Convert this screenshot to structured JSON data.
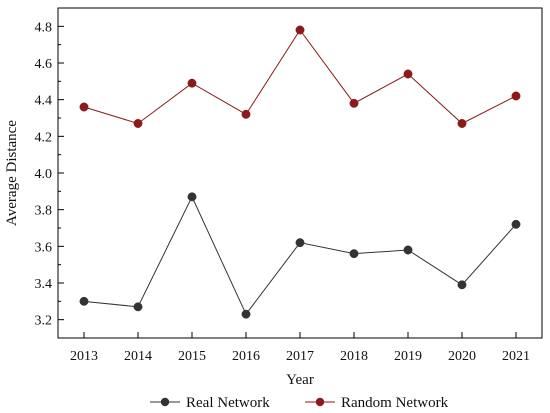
{
  "chart_data": {
    "type": "line",
    "title": "",
    "xlabel": "Year",
    "ylabel": "Average Distance",
    "categories": [
      "2013",
      "2014",
      "2015",
      "2016",
      "2017",
      "2018",
      "2019",
      "2020",
      "2021"
    ],
    "ylim": [
      3.1,
      4.9
    ],
    "yticks": [
      "3.2",
      "3.4",
      "3.6",
      "3.8",
      "4.0",
      "4.2",
      "4.4",
      "4.6",
      "4.8"
    ],
    "grid": false,
    "legend_position": "bottom",
    "series": [
      {
        "name": "Real Network",
        "values": [
          3.3,
          3.27,
          3.87,
          3.23,
          3.62,
          3.56,
          3.58,
          3.39,
          3.72
        ],
        "color": "#333333",
        "marker": "circle"
      },
      {
        "name": "Random Network",
        "values": [
          4.36,
          4.27,
          4.49,
          4.32,
          4.78,
          4.38,
          4.54,
          4.27,
          4.42
        ],
        "color": "#8B1A1A",
        "marker": "circle"
      }
    ]
  }
}
